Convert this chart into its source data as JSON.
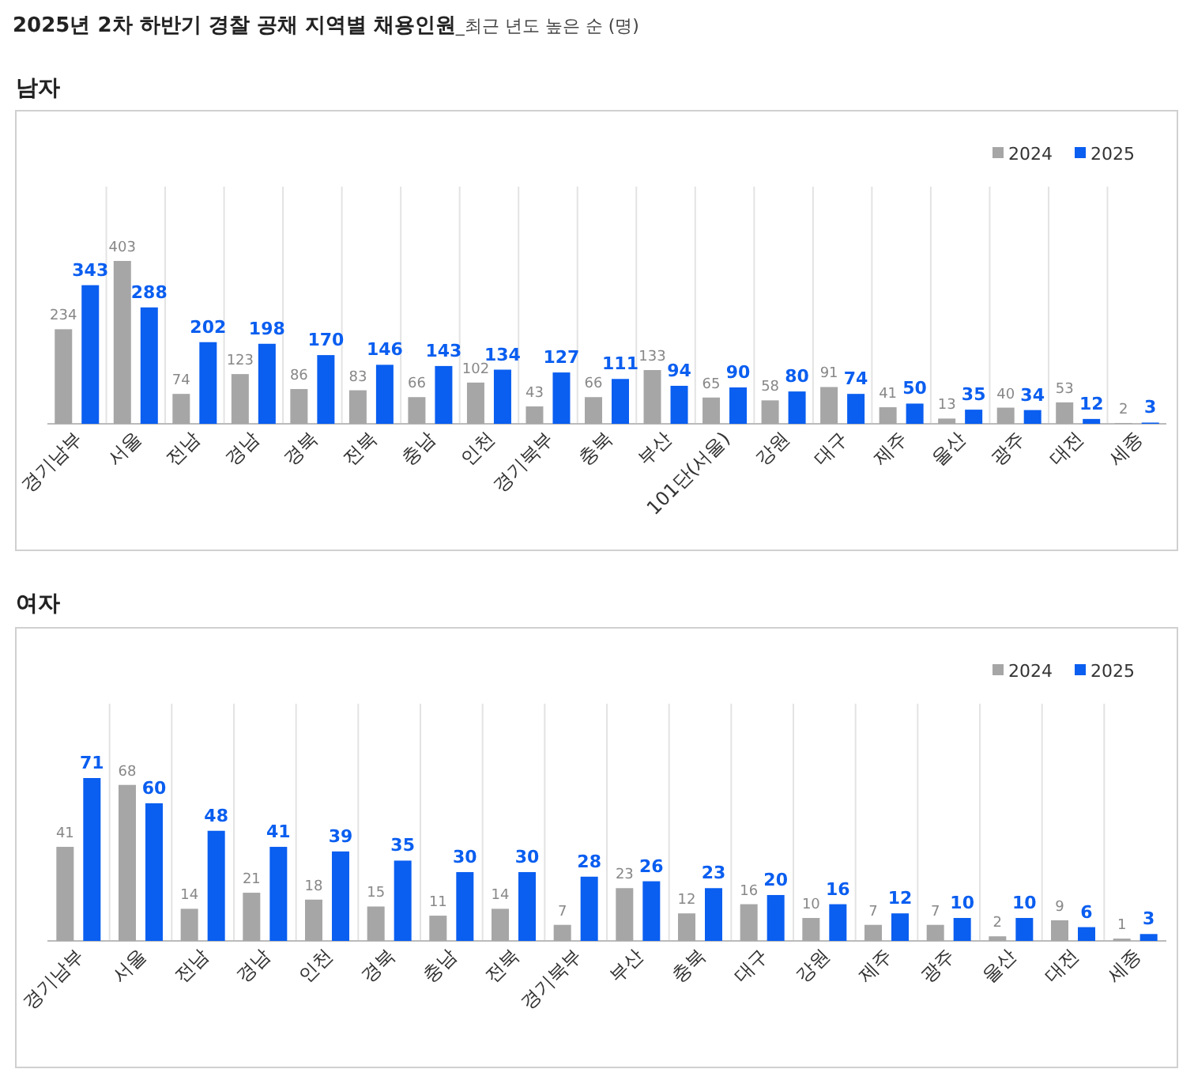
{
  "chart_data": [
    {
      "type": "other",
      "title": "2025년 2차 하반기 경찰 공채 지역별 채용인원",
      "subtitle": "_최근 년도 높은 순 (명)"
    },
    {
      "type": "bar",
      "title": "남자",
      "categories": [
        "경기남부",
        "서울",
        "전남",
        "경남",
        "경북",
        "전북",
        "충남",
        "인천",
        "경기북부",
        "충북",
        "부산",
        "101단(서울)",
        "강원",
        "대구",
        "제주",
        "울산",
        "광주",
        "대전",
        "세종"
      ],
      "series": [
        {
          "name": "2024",
          "color": "#a6a6a6",
          "values": [
            234,
            403,
            74,
            123,
            86,
            83,
            66,
            102,
            43,
            66,
            133,
            65,
            58,
            91,
            41,
            13,
            40,
            53,
            2
          ]
        },
        {
          "name": "2025",
          "color": "#0a5ef0",
          "values": [
            343,
            288,
            202,
            198,
            170,
            146,
            143,
            134,
            127,
            111,
            94,
            90,
            80,
            74,
            50,
            35,
            34,
            12,
            3
          ]
        }
      ],
      "data_labels": true,
      "legend": "top right",
      "grid": "x"
    },
    {
      "type": "bar",
      "title": "여자",
      "categories": [
        "경기남부",
        "서울",
        "전남",
        "경남",
        "인천",
        "경북",
        "충남",
        "전북",
        "경기북부",
        "부산",
        "충북",
        "대구",
        "강원",
        "제주",
        "광주",
        "울산",
        "대전",
        "세종"
      ],
      "series": [
        {
          "name": "2024",
          "color": "#a6a6a6",
          "values": [
            41,
            68,
            14,
            21,
            18,
            15,
            11,
            14,
            7,
            23,
            12,
            16,
            10,
            7,
            7,
            2,
            9,
            1
          ]
        },
        {
          "name": "2025",
          "color": "#0a5ef0",
          "values": [
            71,
            60,
            48,
            41,
            39,
            35,
            30,
            30,
            28,
            26,
            23,
            20,
            16,
            12,
            10,
            10,
            6,
            3
          ]
        }
      ],
      "data_labels": true,
      "legend": "top right",
      "grid": "x"
    }
  ]
}
